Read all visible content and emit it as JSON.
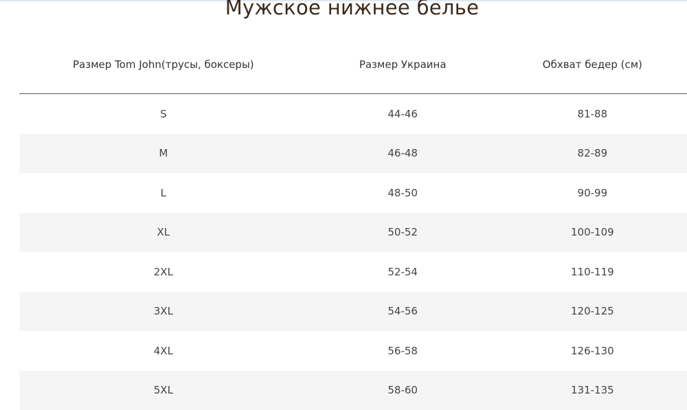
{
  "title": "Мужское нижнее белье",
  "table": {
    "headers": [
      "Размер Tom John(трусы, боксеры)",
      "Размер Украина",
      "Обхват бедер (см)"
    ],
    "rows": [
      [
        "S",
        "44-46",
        "81-88"
      ],
      [
        "M",
        "46-48",
        "82-89"
      ],
      [
        "L",
        "48-50",
        "90-99"
      ],
      [
        "XL",
        "50-52",
        "100-109"
      ],
      [
        "2XL",
        "52-54",
        "110-119"
      ],
      [
        "3XL",
        "54-56",
        "120-125"
      ],
      [
        "4XL",
        "56-58",
        "126-130"
      ],
      [
        "5XL",
        "58-60",
        "131-135"
      ]
    ]
  }
}
